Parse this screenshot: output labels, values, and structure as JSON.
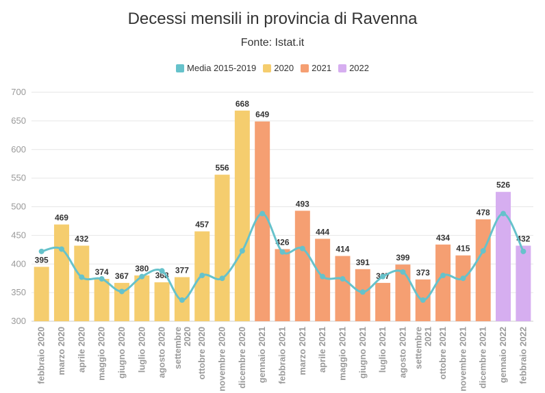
{
  "title": "Decessi mensili in provincia di Ravenna",
  "subtitle": "Fonte: Istat.it",
  "legend": [
    {
      "name": "Media 2015-2019",
      "color": "#66c2cb"
    },
    {
      "name": "2020",
      "color": "#f5cd6e"
    },
    {
      "name": "2021",
      "color": "#f59f72"
    },
    {
      "name": "2022",
      "color": "#d6aef0"
    }
  ],
  "chart_data": {
    "type": "bar",
    "title": "Decessi mensili in provincia di Ravenna",
    "subtitle": "Fonte: Istat.it",
    "ylim": [
      300,
      700
    ],
    "yticks": [
      300,
      350,
      400,
      450,
      500,
      550,
      600,
      650,
      700
    ],
    "grid": true,
    "legend_position": "top",
    "categories": [
      "febbraio 2020",
      "marzo 2020",
      "aprile 2020",
      "maggio 2020",
      "giugno 2020",
      "luglio 2020",
      "agosto 2020",
      "settembre 2020",
      "ottobre 2020",
      "novembre 2020",
      "dicembre 2020",
      "gennaio 2021",
      "febbraio 2021",
      "marzo 2021",
      "aprile 2021",
      "maggio 2021",
      "giugno 2021",
      "luglio 2021",
      "agosto 2021",
      "settembre 2021",
      "ottobre 2021",
      "novembre 2021",
      "dicembre 2021",
      "gennaio 2022",
      "febbraio 2022"
    ],
    "bar_year": [
      "2020",
      "2020",
      "2020",
      "2020",
      "2020",
      "2020",
      "2020",
      "2020",
      "2020",
      "2020",
      "2020",
      "2021",
      "2021",
      "2021",
      "2021",
      "2021",
      "2021",
      "2021",
      "2021",
      "2021",
      "2021",
      "2021",
      "2021",
      "2022",
      "2022"
    ],
    "values": [
      395,
      469,
      432,
      374,
      367,
      380,
      368,
      377,
      457,
      556,
      668,
      649,
      426,
      493,
      444,
      414,
      391,
      367,
      399,
      373,
      434,
      415,
      478,
      526,
      432
    ],
    "series": [
      {
        "name": "Media 2015-2019",
        "type": "line",
        "values": [
          422,
          426,
          377,
          374,
          352,
          378,
          388,
          337,
          380,
          375,
          423,
          488,
          421,
          427,
          378,
          374,
          351,
          378,
          386,
          337,
          380,
          375,
          423,
          488,
          422
        ]
      }
    ]
  }
}
